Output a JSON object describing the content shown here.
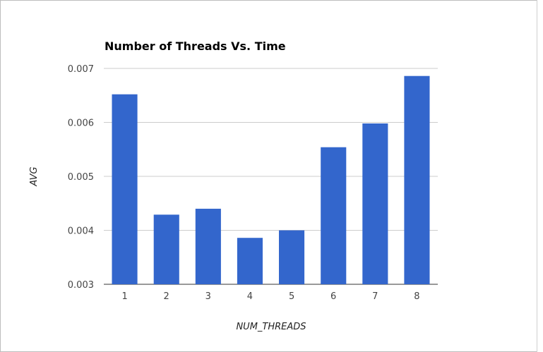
{
  "chart_data": {
    "type": "bar",
    "title": "Number of Threads Vs. Time",
    "xlabel": "NUM_THREADS",
    "ylabel": "AVG",
    "categories": [
      "1",
      "2",
      "3",
      "4",
      "5",
      "6",
      "7",
      "8"
    ],
    "values": [
      0.00652,
      0.00429,
      0.0044,
      0.00386,
      0.004,
      0.00554,
      0.00598,
      0.00686
    ],
    "ylim": [
      0.003,
      0.007
    ],
    "yticks": [
      "0.007",
      "0.006",
      "0.005",
      "0.004",
      "0.003"
    ],
    "ytick_values": [
      0.007,
      0.006,
      0.005,
      0.004,
      0.003
    ],
    "grid": true,
    "bar_color": "#3366cc",
    "grid_color": "#cccccc"
  }
}
